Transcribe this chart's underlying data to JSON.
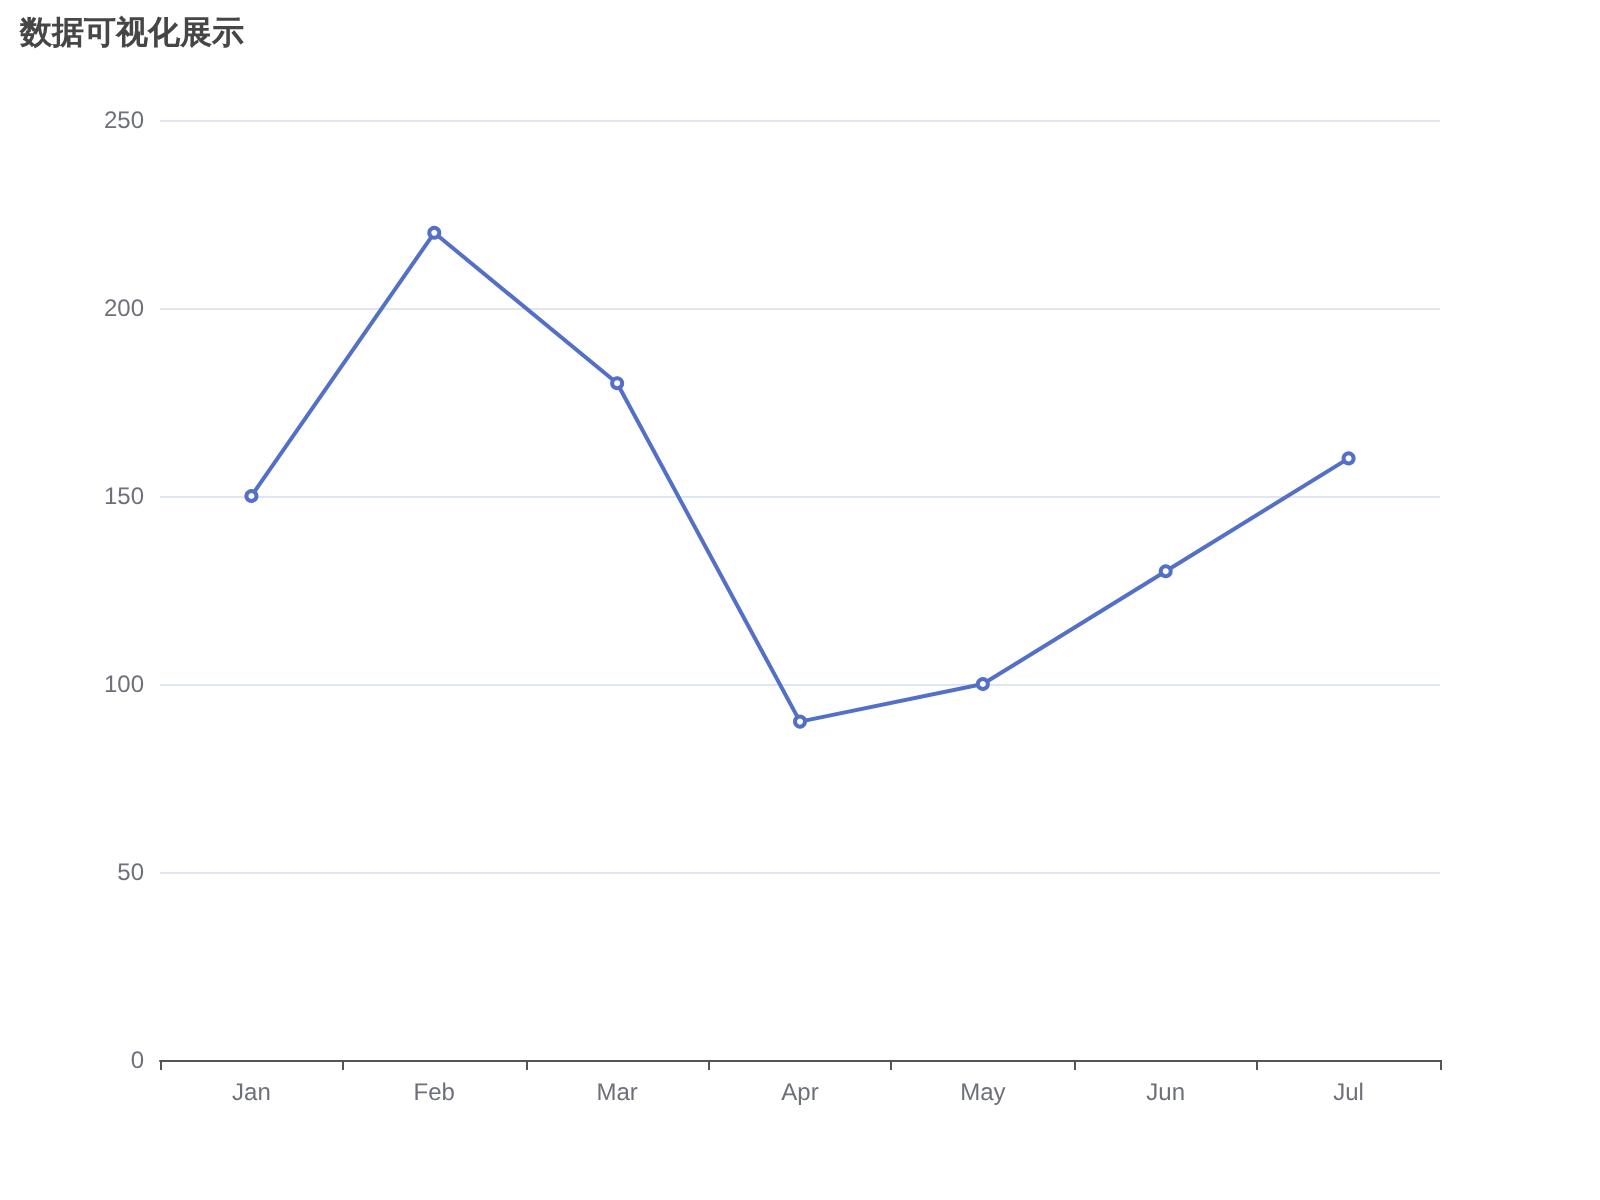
{
  "chart_data": {
    "type": "line",
    "title": "数据可视化展示",
    "categories": [
      "Jan",
      "Feb",
      "Mar",
      "Apr",
      "May",
      "Jun",
      "Jul"
    ],
    "series": [
      {
        "color": "#5470c6",
        "values": [
          150,
          220,
          180,
          90,
          100,
          130,
          160
        ]
      }
    ],
    "ylim": [
      0,
      250
    ],
    "yticks": [
      0,
      50,
      100,
      150,
      200,
      250
    ],
    "grid": "y",
    "marker": "circle",
    "line_style": "solid"
  }
}
